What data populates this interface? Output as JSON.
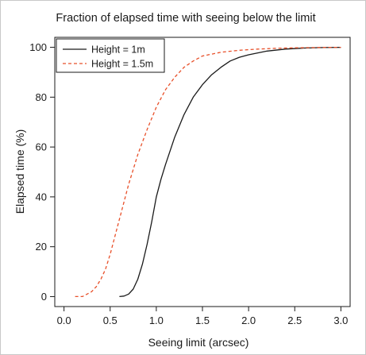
{
  "chart_data": {
    "type": "line",
    "title": "Fraction of elapsed time with seeing below the limit",
    "xlabel": "Seeing limit (arcsec)",
    "ylabel": "Elapsed time (%)",
    "xlim": [
      -0.1,
      3.1
    ],
    "ylim": [
      -4,
      104
    ],
    "xticks": [
      0.0,
      0.5,
      1.0,
      1.5,
      2.0,
      2.5,
      3.0
    ],
    "xtick_labels": [
      "0.0",
      "0.5",
      "1.0",
      "1.5",
      "2.0",
      "2.5",
      "3.0"
    ],
    "yticks": [
      0,
      20,
      40,
      60,
      80,
      100
    ],
    "ytick_labels": [
      "0",
      "20",
      "40",
      "60",
      "80",
      "100"
    ],
    "grid": false,
    "legend_position": "top-left",
    "series": [
      {
        "name": "Height = 1m",
        "color": "#1a1a1a",
        "style": "solid",
        "x": [
          0.6,
          0.65,
          0.7,
          0.75,
          0.8,
          0.85,
          0.9,
          0.95,
          1.0,
          1.05,
          1.1,
          1.2,
          1.3,
          1.4,
          1.5,
          1.6,
          1.7,
          1.8,
          1.9,
          2.0,
          2.2,
          2.4,
          2.6,
          2.8,
          3.0
        ],
        "y": [
          0,
          0.2,
          1,
          3,
          7,
          13,
          21,
          30,
          40,
          47,
          53,
          64,
          73,
          80,
          85,
          89,
          92,
          94.5,
          96,
          97,
          98.5,
          99.3,
          99.7,
          99.9,
          100
        ]
      },
      {
        "name": "Height = 1.5m",
        "color": "#e8502a",
        "style": "dashed",
        "x": [
          0.12,
          0.2,
          0.25,
          0.3,
          0.35,
          0.4,
          0.45,
          0.5,
          0.55,
          0.6,
          0.65,
          0.7,
          0.75,
          0.8,
          0.9,
          1.0,
          1.1,
          1.2,
          1.3,
          1.4,
          1.5,
          1.7,
          1.9,
          2.1,
          2.3,
          2.5,
          2.7,
          2.9,
          3.0
        ],
        "y": [
          0,
          0,
          1,
          2,
          4,
          7,
          11,
          17,
          24,
          31,
          38,
          45,
          51,
          57,
          67,
          76,
          83,
          88,
          92,
          94.5,
          96.5,
          98,
          98.8,
          99.3,
          99.6,
          99.8,
          99.9,
          100,
          100
        ]
      }
    ]
  }
}
